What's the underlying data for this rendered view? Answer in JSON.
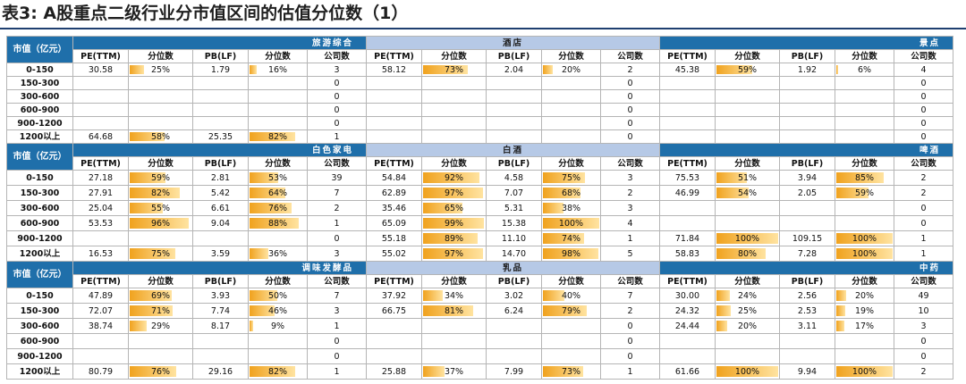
{
  "title": "表3:  A股重点二级行业分市值区间的估值分位数（1）",
  "sub_headers": [
    "PE(TTM)",
    "分位数",
    "PB(LF)",
    "分位数",
    "公司数"
  ],
  "mv_header": "市值（亿元）",
  "blocks": [
    {
      "industries": [
        "旅游综合",
        "酒店",
        "景点"
      ],
      "rows": [
        {
          "label": "0-150",
          "cells": [
            [
              "30.58",
              "25%",
              "1.79",
              "16%",
              "3"
            ],
            [
              "58.12",
              "73%",
              "2.04",
              "20%",
              "2"
            ],
            [
              "45.38",
              "59%",
              "1.92",
              "6%",
              "4"
            ]
          ]
        },
        {
          "label": "150-300",
          "cells": [
            [
              "",
              "",
              "",
              "",
              "0"
            ],
            [
              "",
              "",
              "",
              "",
              "0"
            ],
            [
              "",
              "",
              "",
              "",
              "0"
            ]
          ]
        },
        {
          "label": "300-600",
          "cells": [
            [
              "",
              "",
              "",
              "",
              "0"
            ],
            [
              "",
              "",
              "",
              "",
              "0"
            ],
            [
              "",
              "",
              "",
              "",
              "0"
            ]
          ]
        },
        {
          "label": "600-900",
          "cells": [
            [
              "",
              "",
              "",
              "",
              "0"
            ],
            [
              "",
              "",
              "",
              "",
              "0"
            ],
            [
              "",
              "",
              "",
              "",
              "0"
            ]
          ]
        },
        {
          "label": "900-1200",
          "cells": [
            [
              "",
              "",
              "",
              "",
              "0"
            ],
            [
              "",
              "",
              "",
              "",
              "0"
            ],
            [
              "",
              "",
              "",
              "",
              "0"
            ]
          ]
        },
        {
          "label": "1200以上",
          "cells": [
            [
              "64.68",
              "58%",
              "25.35",
              "82%",
              "1"
            ],
            [
              "",
              "",
              "",
              "",
              "0"
            ],
            [
              "",
              "",
              "",
              "",
              "0"
            ]
          ]
        }
      ]
    },
    {
      "industries": [
        "白色家电",
        "白酒",
        "啤酒"
      ],
      "rows": [
        {
          "label": "0-150",
          "cells": [
            [
              "27.18",
              "59%",
              "2.81",
              "53%",
              "39"
            ],
            [
              "54.84",
              "92%",
              "4.58",
              "75%",
              "3"
            ],
            [
              "75.53",
              "51%",
              "3.94",
              "85%",
              "2"
            ]
          ]
        },
        {
          "label": "150-300",
          "cells": [
            [
              "27.91",
              "82%",
              "5.42",
              "64%",
              "7"
            ],
            [
              "62.89",
              "97%",
              "7.07",
              "68%",
              "2"
            ],
            [
              "46.99",
              "54%",
              "2.05",
              "59%",
              "2"
            ]
          ]
        },
        {
          "label": "300-600",
          "cells": [
            [
              "25.04",
              "55%",
              "6.61",
              "76%",
              "2"
            ],
            [
              "35.46",
              "65%",
              "5.31",
              "38%",
              "3"
            ],
            [
              "",
              "",
              "",
              "",
              "0"
            ]
          ]
        },
        {
          "label": "600-900",
          "cells": [
            [
              "53.53",
              "96%",
              "9.04",
              "88%",
              "1"
            ],
            [
              "65.09",
              "99%",
              "15.38",
              "100%",
              "4"
            ],
            [
              "",
              "",
              "",
              "",
              "0"
            ]
          ]
        },
        {
          "label": "900-1200",
          "cells": [
            [
              "",
              "",
              "",
              "",
              "0"
            ],
            [
              "55.18",
              "89%",
              "11.10",
              "74%",
              "1"
            ],
            [
              "71.84",
              "100%",
              "109.15",
              "100%",
              "1"
            ]
          ]
        },
        {
          "label": "1200以上",
          "cells": [
            [
              "16.53",
              "75%",
              "3.59",
              "36%",
              "3"
            ],
            [
              "55.02",
              "97%",
              "14.70",
              "98%",
              "5"
            ],
            [
              "58.83",
              "80%",
              "7.28",
              "100%",
              "1"
            ]
          ]
        }
      ]
    },
    {
      "industries": [
        "调味发酵品",
        "乳品",
        "中药"
      ],
      "rows": [
        {
          "label": "0-150",
          "cells": [
            [
              "47.89",
              "69%",
              "3.93",
              "50%",
              "7"
            ],
            [
              "37.92",
              "34%",
              "3.02",
              "40%",
              "7"
            ],
            [
              "30.00",
              "24%",
              "2.56",
              "20%",
              "49"
            ]
          ]
        },
        {
          "label": "150-300",
          "cells": [
            [
              "72.07",
              "71%",
              "7.74",
              "46%",
              "3"
            ],
            [
              "66.75",
              "81%",
              "6.24",
              "79%",
              "2"
            ],
            [
              "24.32",
              "25%",
              "2.53",
              "19%",
              "10"
            ]
          ]
        },
        {
          "label": "300-600",
          "cells": [
            [
              "38.74",
              "29%",
              "8.17",
              "9%",
              "1"
            ],
            [
              "",
              "",
              "",
              "",
              "0"
            ],
            [
              "24.44",
              "20%",
              "3.11",
              "17%",
              "3"
            ]
          ]
        },
        {
          "label": "600-900",
          "cells": [
            [
              "",
              "",
              "",
              "",
              "0"
            ],
            [
              "",
              "",
              "",
              "",
              "0"
            ],
            [
              "",
              "",
              "",
              "",
              "0"
            ]
          ]
        },
        {
          "label": "900-1200",
          "cells": [
            [
              "",
              "",
              "",
              "",
              "0"
            ],
            [
              "",
              "",
              "",
              "",
              "0"
            ],
            [
              "",
              "",
              "",
              "",
              "0"
            ]
          ]
        },
        {
          "label": "1200以上",
          "cells": [
            [
              "80.79",
              "76%",
              "29.16",
              "82%",
              "1"
            ],
            [
              "25.88",
              "37%",
              "7.99",
              "73%",
              "1"
            ],
            [
              "61.66",
              "100%",
              "9.94",
              "100%",
              "2"
            ]
          ]
        }
      ]
    }
  ]
}
